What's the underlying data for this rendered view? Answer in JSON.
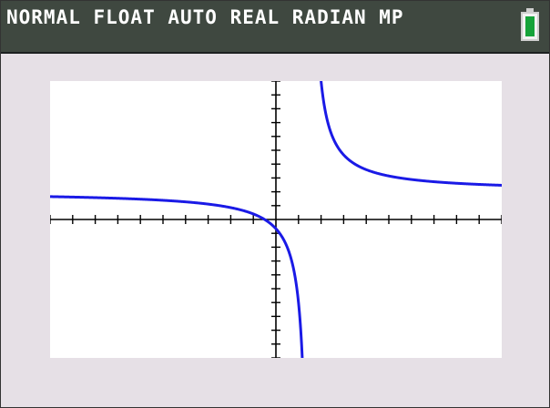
{
  "status_bar": {
    "text": "NORMAL FLOAT AUTO REAL RADIAN MP",
    "battery_level": 1.0,
    "battery_color": "#16a33a"
  },
  "graph": {
    "window": {
      "xmin": -10,
      "xmax": 10,
      "ymin": -10,
      "ymax": 10,
      "xscl": 1,
      "yscl": 1
    },
    "function": "y = (2x + 1) / (x - 1.5)",
    "asymptotes": {
      "vertical": 1.5,
      "horizontal": 2
    },
    "curve_color": "#1a1ae6",
    "axis_color": "#000000"
  }
}
